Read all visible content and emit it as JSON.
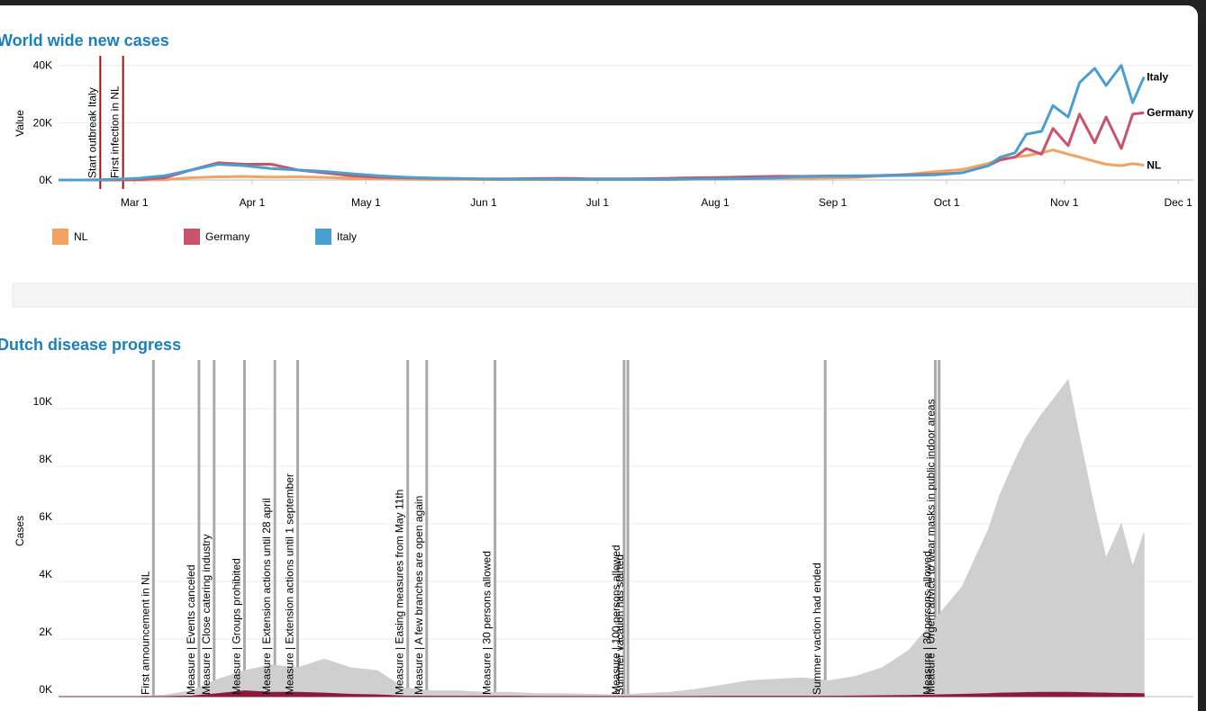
{
  "chart_data": [
    {
      "type": "line",
      "title": "World wide new cases",
      "y_label": "Value",
      "x": [
        "Feb 10",
        "Feb 17",
        "Feb 24",
        "Mar 2",
        "Mar 9",
        "Mar 16",
        "Mar 23",
        "Mar 30",
        "Apr 6",
        "Apr 13",
        "Apr 20",
        "Apr 27",
        "May 4",
        "May 11",
        "May 18",
        "May 25",
        "Jun 1",
        "Jun 8",
        "Jun 15",
        "Jun 22",
        "Jun 29",
        "Jul 6",
        "Jul 13",
        "Jul 20",
        "Jul 27",
        "Aug 3",
        "Aug 10",
        "Aug 17",
        "Aug 24",
        "Aug 31",
        "Sep 7",
        "Sep 14",
        "Sep 21",
        "Sep 28",
        "Oct 5",
        "Oct 12",
        "Oct 15",
        "Oct 19",
        "Oct 22",
        "Oct 26",
        "Oct 29",
        "Nov 2",
        "Nov 5",
        "Nov 9",
        "Nov 12",
        "Nov 16",
        "Nov 19",
        "Nov 22"
      ],
      "series": [
        {
          "name": "NL",
          "color": "#f4a261",
          "values": [
            0,
            0,
            0,
            0,
            100,
            800,
            1100,
            1200,
            1000,
            1100,
            900,
            600,
            400,
            250,
            200,
            180,
            150,
            150,
            120,
            100,
            100,
            100,
            120,
            200,
            300,
            500,
            600,
            650,
            600,
            700,
            900,
            1400,
            2000,
            2900,
            3600,
            5800,
            7300,
            8000,
            8500,
            9500,
            10500,
            9000,
            8000,
            6500,
            5500,
            5000,
            5700,
            5200
          ]
        },
        {
          "name": "Germany",
          "color": "#c8536b",
          "values": [
            0,
            0,
            0,
            100,
            800,
            3500,
            6000,
            5500,
            5500,
            3500,
            2500,
            1500,
            1000,
            800,
            600,
            500,
            400,
            400,
            500,
            600,
            400,
            400,
            450,
            600,
            800,
            900,
            1100,
            1300,
            1300,
            1400,
            1300,
            1600,
            1800,
            2000,
            2500,
            5000,
            7000,
            8000,
            11000,
            9000,
            18000,
            12000,
            23000,
            13000,
            22000,
            11000,
            23000,
            23500
          ]
        },
        {
          "name": "Italy",
          "color": "#4a9fd0",
          "values": [
            0,
            0,
            200,
            600,
            1500,
            3500,
            5500,
            5000,
            4000,
            3500,
            3000,
            2200,
            1500,
            1000,
            700,
            500,
            300,
            250,
            300,
            200,
            200,
            200,
            200,
            250,
            300,
            350,
            500,
            700,
            1200,
            1300,
            1500,
            1500,
            1600,
            1800,
            2500,
            5000,
            7900,
            9500,
            16000,
            17000,
            26000,
            22000,
            34000,
            39000,
            33000,
            40000,
            27000,
            36000
          ]
        }
      ],
      "xlim": [
        "Feb 10",
        "Dec 5"
      ],
      "xticks": [
        "Mar 1",
        "Apr 1",
        "May 1",
        "Jun 1",
        "Jul 1",
        "Aug 1",
        "Sep 1",
        "Oct 1",
        "Nov 1",
        "Dec 1"
      ],
      "ylim": [
        0,
        44000
      ],
      "yticks": [
        {
          "value": 0,
          "label": "0K"
        },
        {
          "value": 20000,
          "label": "20K"
        },
        {
          "value": 40000,
          "label": "40K"
        }
      ],
      "grid": true,
      "legend": "bottom-left",
      "end_labels": true,
      "annotation_color": "#a30d0d",
      "annotations": [
        {
          "x": "Feb 21",
          "label": "Start outbreak Italy"
        },
        {
          "x": "Feb 27",
          "label": "First infection in NL"
        }
      ]
    },
    {
      "type": "area",
      "title": "Dutch disease progress",
      "y_label": "Cases",
      "x": [
        "Feb 10",
        "Feb 17",
        "Feb 24",
        "Mar 2",
        "Mar 9",
        "Mar 16",
        "Mar 23",
        "Mar 30",
        "Apr 6",
        "Apr 13",
        "Apr 20",
        "Apr 27",
        "May 4",
        "May 11",
        "May 18",
        "May 25",
        "Jun 1",
        "Jun 8",
        "Jun 15",
        "Jun 22",
        "Jun 29",
        "Jul 6",
        "Jul 13",
        "Jul 20",
        "Jul 27",
        "Aug 3",
        "Aug 10",
        "Aug 17",
        "Aug 24",
        "Aug 31",
        "Sep 7",
        "Sep 14",
        "Sep 21",
        "Sep 28",
        "Oct 5",
        "Oct 12",
        "Oct 15",
        "Oct 19",
        "Oct 22",
        "Oct 26",
        "Oct 29",
        "Nov 2",
        "Nov 5",
        "Nov 9",
        "Nov 12",
        "Nov 16",
        "Nov 19",
        "Nov 22"
      ],
      "series": [
        {
          "color": "#cfcfcf",
          "values": [
            0,
            0,
            0,
            0,
            50,
            200,
            600,
            900,
            1100,
            1000,
            1300,
            1000,
            900,
            300,
            200,
            200,
            150,
            150,
            100,
            100,
            80,
            60,
            100,
            150,
            250,
            400,
            550,
            600,
            650,
            550,
            700,
            1000,
            1600,
            2700,
            3800,
            5800,
            7000,
            8200,
            9000,
            9800,
            10300,
            11000,
            9000,
            6500,
            4800,
            6000,
            4500,
            5700
          ]
        },
        {
          "color": "#8b1a3c",
          "values": [
            0,
            0,
            0,
            0,
            0,
            20,
            100,
            200,
            150,
            150,
            120,
            80,
            60,
            20,
            10,
            10,
            10,
            10,
            5,
            5,
            5,
            5,
            5,
            5,
            5,
            10,
            10,
            10,
            10,
            10,
            20,
            30,
            40,
            60,
            80,
            100,
            120,
            130,
            140,
            150,
            150,
            150,
            140,
            130,
            120,
            110,
            110,
            100
          ]
        }
      ],
      "xlim": [
        "Feb 10",
        "Dec 5"
      ],
      "ylim": [
        0,
        11500
      ],
      "yticks": [
        {
          "value": 0,
          "label": "0K"
        },
        {
          "value": 2000,
          "label": "2K"
        },
        {
          "value": 4000,
          "label": "4K"
        },
        {
          "value": 6000,
          "label": "6K"
        },
        {
          "value": 8000,
          "label": "8K"
        },
        {
          "value": 10000,
          "label": "10K"
        }
      ],
      "grid": true,
      "annotation_color": "#b0175a",
      "annotations": [
        {
          "x": "Mar 6",
          "label": "First announcement in NL"
        },
        {
          "x": "Mar 18",
          "label": "Measure | Events canceled"
        },
        {
          "x": "Mar 22",
          "label": "Measure | Close catering industry"
        },
        {
          "x": "Mar 30",
          "label": "Measure | Groups prohibited"
        },
        {
          "x": "Apr 7",
          "label": "Measure | Extension actions until 28 april"
        },
        {
          "x": "Apr 13",
          "label": "Measure | Extension actions until 1 september"
        },
        {
          "x": "May 12",
          "label": "Measure | Easing measures from May 11th"
        },
        {
          "x": "May 17",
          "label": "Measure | A few branches are open again"
        },
        {
          "x": "Jun 4",
          "label": "Measure | 30 persons allowed"
        },
        {
          "x": "Jul 8",
          "label": "Measure | 100 persons allowed"
        },
        {
          "x": "Jul 9",
          "label": "Summer vacation has started"
        },
        {
          "x": "Aug 30",
          "label": "Summer vaction had ended"
        },
        {
          "x": "Sep 28",
          "label": "Measure | 30 persons allowed"
        },
        {
          "x": "Sep 29",
          "label": "Measure | Urgent advice to wear masks in public indoor areas"
        }
      ]
    }
  ]
}
